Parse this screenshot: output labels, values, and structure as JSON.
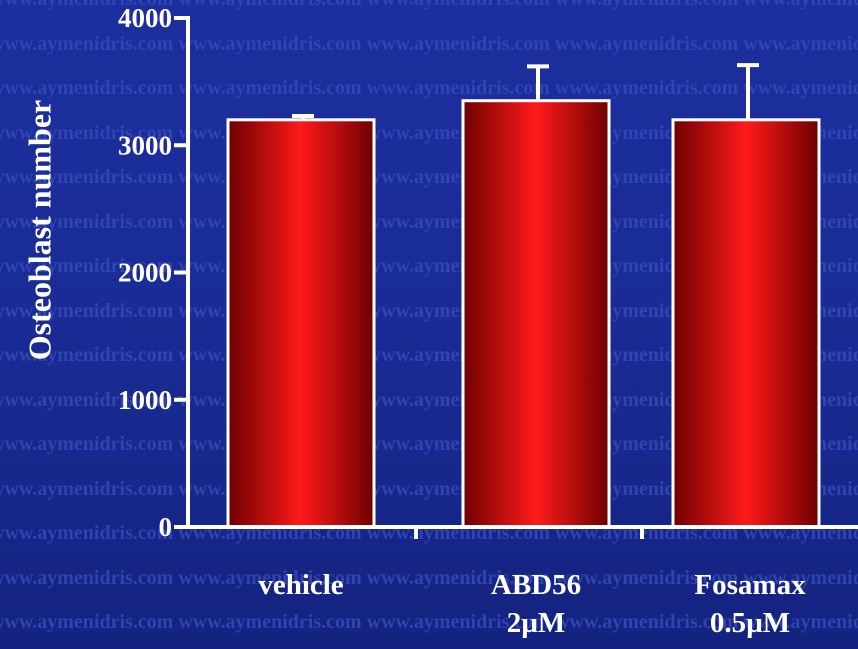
{
  "watermark": {
    "text": "www.aymenidris.com"
  },
  "colors": {
    "background": "#1a2b95",
    "bar_dark": "#6e0000",
    "bar_bright": "#ff1a1a",
    "axis": "#ffffff"
  },
  "chart_data": {
    "type": "bar",
    "title": "",
    "ylabel": "Osteoblast number",
    "xlabel": "",
    "categories": [
      "vehicle",
      "ABD56\n2µM",
      "Fosamax\n0.5µM"
    ],
    "values": [
      3200,
      3350,
      3200
    ],
    "error": [
      30,
      270,
      430
    ],
    "ylim": [
      0,
      4000
    ],
    "yticks": [
      0,
      1000,
      2000,
      3000,
      4000
    ],
    "grid": false,
    "legend": "none"
  }
}
